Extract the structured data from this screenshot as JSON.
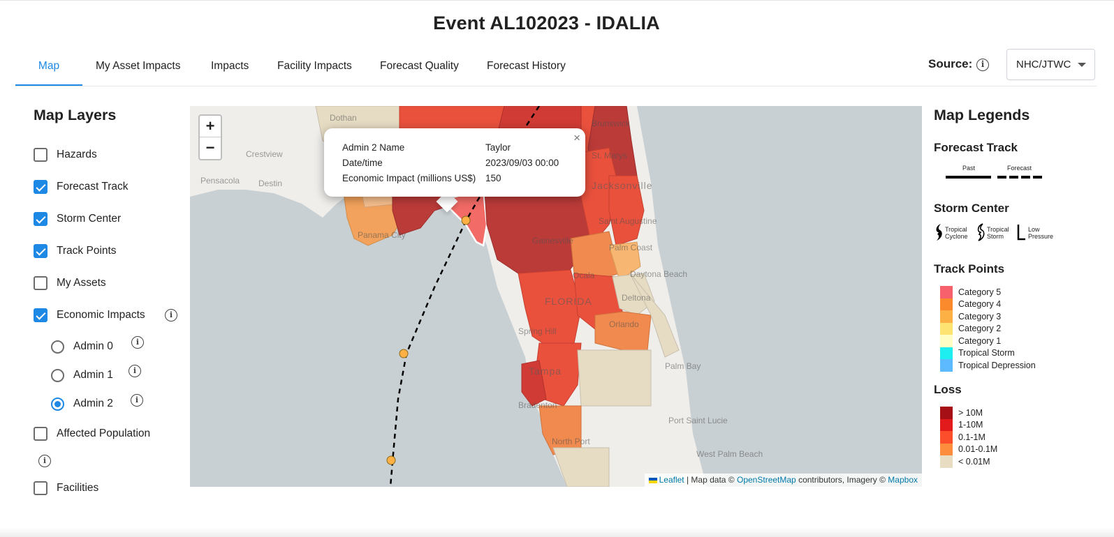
{
  "header": {
    "title": "Event AL102023 - IDALIA"
  },
  "tabs": [
    {
      "label": "Map",
      "active": true
    },
    {
      "label": "My Asset Impacts"
    },
    {
      "label": "Impacts"
    },
    {
      "label": "Facility Impacts"
    },
    {
      "label": "Forecast Quality"
    },
    {
      "label": "Forecast History"
    }
  ],
  "source": {
    "label": "Source:",
    "info_icon": "info-icon",
    "selected": "NHC/JTWC"
  },
  "map_layers": {
    "title": "Map Layers",
    "items": [
      {
        "label": "Hazards",
        "checked": false
      },
      {
        "label": "Forecast Track",
        "checked": true
      },
      {
        "label": "Storm Center",
        "checked": true
      },
      {
        "label": "Track Points",
        "checked": true
      },
      {
        "label": "My Assets",
        "checked": false
      },
      {
        "label": "Economic Impacts",
        "checked": true
      },
      {
        "label": "Affected Population",
        "checked": false
      },
      {
        "label": "Facilities",
        "checked": false
      }
    ],
    "admin_levels": [
      {
        "label": "Admin 0",
        "selected": false
      },
      {
        "label": "Admin 1",
        "selected": false
      },
      {
        "label": "Admin 2",
        "selected": true
      }
    ]
  },
  "map": {
    "zoom_in": "+",
    "zoom_out": "−",
    "popup": {
      "close": "×",
      "rows": [
        {
          "key": "Admin 2 Name",
          "value": "Taylor"
        },
        {
          "key": "Date/time",
          "value": "2023/09/03 00:00"
        },
        {
          "key": "Economic Impact (millions US$)",
          "value": "150"
        }
      ]
    },
    "place_labels": {
      "dothan": "Dothan",
      "crestview": "Crestview",
      "pensacola": "Pensacola",
      "destin": "Destin",
      "brunswick": "Brunswick",
      "st_marys": "St. Marys",
      "jacksonville": "Jacksonville",
      "st_augustine": "Saint Augustine",
      "palm_coast": "Palm Coast",
      "gainesville": "Gainesville",
      "ocala": "Ocala",
      "florida": "FLORIDA",
      "daytona": "Daytona Beach",
      "deltona": "Deltona",
      "orlando": "Orlando",
      "spring_hill": "Spring Hill",
      "tampa": "Tampa",
      "palm_bay": "Palm Bay",
      "bradenton": "Bradenton",
      "port_st_lucie": "Port Saint Lucie",
      "north_port": "North Port",
      "west_palm": "West Palm Beach",
      "panama_city": "Panama City"
    },
    "attribution": {
      "leaflet": "Leaflet",
      "sep": "| Map data ©",
      "osm": "OpenStreetMap",
      "mid": "contributors, Imagery ©",
      "mapbox": "Mapbox"
    }
  },
  "legends": {
    "title": "Map Legends",
    "forecast_track": {
      "title": "Forecast Track",
      "past": "Past",
      "forecast": "Forecast"
    },
    "storm_center": {
      "title": "Storm Center",
      "items": [
        {
          "label_1": "Tropical",
          "label_2": "Cyclone"
        },
        {
          "label_1": "Tropical",
          "label_2": "Storm"
        },
        {
          "label_1": "Low",
          "label_2": "Pressure"
        }
      ]
    },
    "track_points": {
      "title": "Track Points",
      "items": [
        {
          "label": "Category 5",
          "color": "#f7616b"
        },
        {
          "label": "Category 4",
          "color": "#fb8a2d"
        },
        {
          "label": "Category 3",
          "color": "#fdb043"
        },
        {
          "label": "Category 2",
          "color": "#fde472"
        },
        {
          "label": "Category 1",
          "color": "#fefdc4"
        },
        {
          "label": "Tropical Storm",
          "color": "#1eeef0"
        },
        {
          "label": "Tropical Depression",
          "color": "#5ebaff"
        }
      ]
    },
    "loss": {
      "title": "Loss",
      "items": [
        {
          "label": "> 10M",
          "color": "#a50f15"
        },
        {
          "label": "1-10M",
          "color": "#e31a1c"
        },
        {
          "label": "0.1-1M",
          "color": "#fc4e2a"
        },
        {
          "label": "0.01-0.1M",
          "color": "#fd8d3c"
        },
        {
          "label": "< 0.01M",
          "color": "#e8dcc2"
        }
      ]
    }
  }
}
